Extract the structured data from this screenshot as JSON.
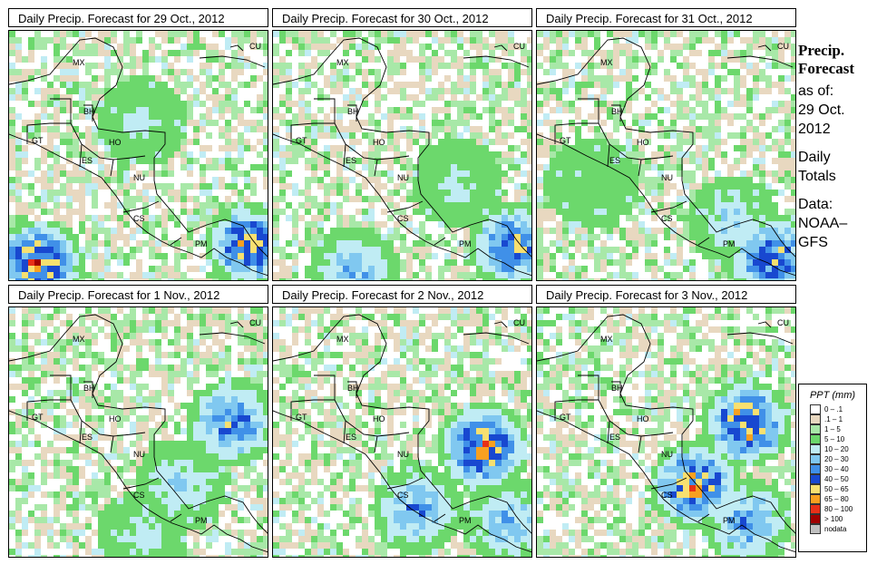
{
  "panels": [
    {
      "title": "Daily Precip. Forecast for  29 Oct., 2012",
      "seed": 11,
      "bias": [
        0.2,
        0.1
      ],
      "storm": [
        [
          0.1,
          0.92,
          0.9
        ],
        [
          0.92,
          0.85,
          0.8
        ],
        [
          0.5,
          0.35,
          0.2
        ]
      ]
    },
    {
      "title": "Daily Precip. Forecast for  30 Oct., 2012",
      "seed": 23,
      "bias": [
        0.0,
        0.2
      ],
      "storm": [
        [
          0.92,
          0.85,
          0.7
        ],
        [
          0.3,
          0.95,
          0.4
        ],
        [
          0.7,
          0.6,
          0.2
        ]
      ]
    },
    {
      "title": "Daily Precip. Forecast for  31 Oct., 2012",
      "seed": 37,
      "bias": [
        0.1,
        0.3
      ],
      "storm": [
        [
          0.9,
          0.9,
          0.7
        ],
        [
          0.75,
          0.75,
          0.3
        ],
        [
          0.2,
          0.6,
          0.1
        ]
      ]
    },
    {
      "title": "Daily Precip. Forecast for  1 Nov., 2012",
      "seed": 41,
      "bias": [
        0.3,
        0.2
      ],
      "storm": [
        [
          0.85,
          0.45,
          0.6
        ],
        [
          0.65,
          0.7,
          0.3
        ],
        [
          0.5,
          0.9,
          0.2
        ]
      ]
    },
    {
      "title": "Daily Precip. Forecast for  2 Nov., 2012",
      "seed": 53,
      "bias": [
        0.3,
        0.3
      ],
      "storm": [
        [
          0.8,
          0.55,
          0.9
        ],
        [
          0.55,
          0.8,
          0.5
        ],
        [
          0.9,
          0.85,
          0.4
        ]
      ]
    },
    {
      "title": "Daily Precip. Forecast for  3 Nov., 2012",
      "seed": 67,
      "bias": [
        0.4,
        0.3
      ],
      "storm": [
        [
          0.8,
          0.45,
          0.9
        ],
        [
          0.6,
          0.7,
          0.85
        ],
        [
          0.8,
          0.85,
          0.5
        ]
      ]
    }
  ],
  "country_labels": [
    "MX",
    "BH",
    "GT",
    "HO",
    "ES",
    "NU",
    "CS",
    "PM",
    "CU"
  ],
  "side": {
    "title1": "Precip.",
    "title2": "Forecast",
    "asof": "as of:",
    "date": "29 Oct.",
    "year": "2012",
    "daily1": "Daily",
    "daily2": "Totals",
    "data1": "Data:",
    "data2": "NOAA–",
    "data3": "GFS"
  },
  "legend": {
    "title": "PPT (mm)",
    "items": [
      {
        "label": "0 – .1",
        "color": "#ffffff"
      },
      {
        "label": ".1 – 1",
        "color": "#e8d8c0"
      },
      {
        "label": "1 – 5",
        "color": "#a8e8a8"
      },
      {
        "label": "5 – 10",
        "color": "#6cd86c"
      },
      {
        "label": "10 – 20",
        "color": "#c0ecf4"
      },
      {
        "label": "20 – 30",
        "color": "#80c8f0"
      },
      {
        "label": "30 – 40",
        "color": "#4090e8"
      },
      {
        "label": "40 – 50",
        "color": "#1848d0"
      },
      {
        "label": "50 – 65",
        "color": "#f8e070"
      },
      {
        "label": "65 – 80",
        "color": "#f8a020"
      },
      {
        "label": "80 – 100",
        "color": "#e83018"
      },
      {
        "label": "> 100",
        "color": "#a00000"
      },
      {
        "label": "nodata",
        "color": "#c0c0c0"
      }
    ]
  }
}
